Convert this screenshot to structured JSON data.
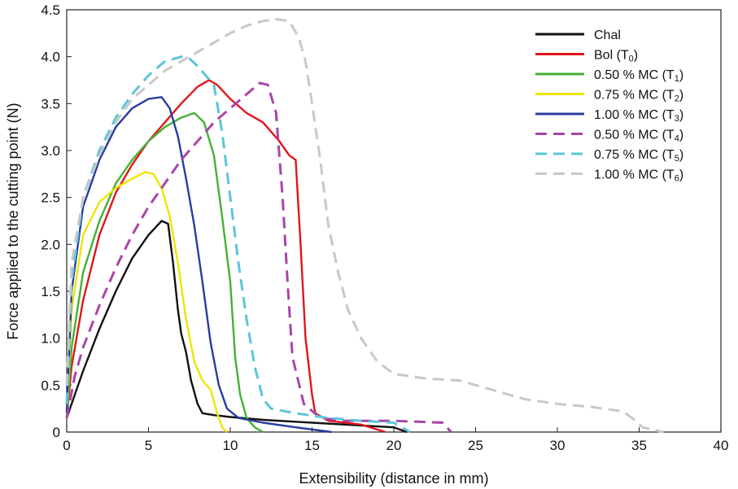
{
  "chart_data": {
    "type": "line",
    "xlabel": "Extensibility (distance in mm)",
    "ylabel": "Force applied to the cutting point (N)",
    "xlim": [
      0,
      40
    ],
    "ylim": [
      0,
      4.5
    ],
    "xticks": [
      0,
      5,
      10,
      15,
      20,
      25,
      30,
      35,
      40
    ],
    "yticks": [
      0,
      0.5,
      1.0,
      1.5,
      2.0,
      2.5,
      3.0,
      3.5,
      4.0,
      4.5
    ],
    "ytick_labels": [
      "0",
      "0.5",
      "1.0",
      "1.5",
      "2.0",
      "2.5",
      "3.0",
      "3.5",
      "4.0",
      "4.5"
    ],
    "grid": false,
    "legend_position": "top-right",
    "series": [
      {
        "name": "Chal",
        "sub": "",
        "color": "#111111",
        "dashed": false,
        "x": [
          0,
          0.3,
          1,
          2,
          3,
          4,
          5,
          5.8,
          6.2,
          6.5,
          6.8,
          7,
          7.3,
          7.6,
          8,
          8.3,
          9,
          10,
          12,
          15,
          18,
          20,
          20.8
        ],
        "y": [
          0.15,
          0.3,
          0.65,
          1.1,
          1.5,
          1.85,
          2.1,
          2.25,
          2.22,
          1.8,
          1.3,
          1.05,
          0.85,
          0.55,
          0.3,
          0.2,
          0.18,
          0.16,
          0.13,
          0.1,
          0.07,
          0.05,
          0.0
        ]
      },
      {
        "name": "Bol (T",
        "sub": "0",
        "color": "#e0161c",
        "dashed": false,
        "x": [
          0,
          0.3,
          1,
          2,
          3,
          4,
          5,
          6,
          7,
          8,
          8.7,
          9.2,
          10,
          11,
          12,
          13,
          13.6,
          14,
          14.3,
          14.6,
          15,
          15.2,
          16,
          18,
          19.5
        ],
        "y": [
          0.15,
          0.7,
          1.4,
          2.1,
          2.55,
          2.85,
          3.1,
          3.3,
          3.5,
          3.68,
          3.75,
          3.7,
          3.55,
          3.4,
          3.3,
          3.1,
          2.95,
          2.9,
          2.0,
          1.0,
          0.4,
          0.2,
          0.12,
          0.08,
          0.0
        ]
      },
      {
        "name": "0.50 % MC (T",
        "sub": "1",
        "color": "#45b035",
        "dashed": false,
        "x": [
          0,
          0.3,
          1,
          2,
          3,
          4,
          5,
          6,
          7,
          7.8,
          8.4,
          9,
          9.5,
          10,
          10.3,
          10.6,
          11,
          11.5,
          12
        ],
        "y": [
          0.15,
          0.9,
          1.7,
          2.25,
          2.65,
          2.9,
          3.1,
          3.25,
          3.35,
          3.4,
          3.3,
          2.95,
          2.3,
          1.6,
          0.8,
          0.4,
          0.15,
          0.05,
          0.0
        ]
      },
      {
        "name": "0.75 % MC (T",
        "sub": "2",
        "color": "#f0e400",
        "dashed": false,
        "x": [
          0,
          0.3,
          1,
          2,
          3,
          4,
          4.8,
          5.3,
          5.8,
          6.3,
          6.8,
          7.3,
          7.8,
          8.3,
          8.8,
          9.2,
          9.5,
          9.8
        ],
        "y": [
          0.15,
          1.3,
          2.1,
          2.45,
          2.6,
          2.7,
          2.77,
          2.75,
          2.6,
          2.3,
          1.8,
          1.2,
          0.75,
          0.55,
          0.45,
          0.2,
          0.05,
          0.0
        ]
      },
      {
        "name": "1.00 % MC (T",
        "sub": "3",
        "color": "#2b3c9f",
        "dashed": false,
        "x": [
          0,
          0.3,
          1,
          2,
          3,
          4,
          5,
          5.8,
          6.3,
          6.8,
          7.3,
          7.8,
          8.3,
          8.8,
          9.3,
          9.8,
          10.5,
          12,
          14,
          16.2
        ],
        "y": [
          0.2,
          1.5,
          2.4,
          2.9,
          3.25,
          3.45,
          3.55,
          3.57,
          3.45,
          3.15,
          2.7,
          2.2,
          1.6,
          0.95,
          0.5,
          0.25,
          0.15,
          0.1,
          0.05,
          0.0
        ]
      },
      {
        "name": "0.50 % MC (T",
        "sub": "4",
        "color": "#a845a8",
        "dashed": true,
        "x": [
          0,
          0.5,
          1,
          2,
          3,
          4,
          5,
          6,
          7,
          8,
          9,
          10,
          11,
          11.8,
          12.3,
          12.8,
          13.2,
          13.5,
          13.8,
          14.5,
          15.5,
          17,
          20,
          23,
          23.5
        ],
        "y": [
          0.15,
          0.6,
          0.9,
          1.35,
          1.75,
          2.1,
          2.4,
          2.65,
          2.9,
          3.1,
          3.3,
          3.45,
          3.6,
          3.72,
          3.7,
          3.4,
          2.5,
          1.6,
          0.8,
          0.3,
          0.15,
          0.12,
          0.12,
          0.1,
          0.0
        ]
      },
      {
        "name": "0.75 % MC (T",
        "sub": "5",
        "color": "#5bc6d8",
        "dashed": true,
        "x": [
          0,
          0.3,
          1,
          2,
          3,
          4,
          5,
          6,
          7,
          7.5,
          8,
          8.5,
          9,
          9.5,
          10,
          10.5,
          11,
          11.5,
          12,
          12.5,
          14,
          16,
          18,
          20,
          21
        ],
        "y": [
          0.3,
          1.6,
          2.5,
          3.0,
          3.35,
          3.6,
          3.8,
          3.95,
          4.0,
          3.98,
          3.9,
          3.8,
          3.7,
          3.2,
          2.5,
          1.8,
          1.2,
          0.7,
          0.35,
          0.25,
          0.2,
          0.15,
          0.12,
          0.1,
          0.0
        ]
      },
      {
        "name": "1.00 % MC (T",
        "sub": "6",
        "color": "#c8c8c8",
        "dashed": true,
        "x": [
          0,
          0.3,
          1,
          2,
          3,
          4,
          5,
          6,
          7,
          8,
          9,
          10,
          11,
          12,
          12.8,
          13.6,
          14.2,
          14.6,
          15,
          15.5,
          16,
          16.6,
          17.2,
          18,
          19,
          20,
          22,
          24,
          26,
          28,
          30,
          32,
          34,
          34.8,
          35.2,
          36.5
        ],
        "y": [
          0.5,
          1.8,
          2.5,
          2.95,
          3.3,
          3.55,
          3.7,
          3.85,
          3.95,
          4.05,
          4.15,
          4.25,
          4.33,
          4.38,
          4.4,
          4.38,
          4.2,
          3.95,
          3.5,
          2.9,
          2.2,
          1.7,
          1.3,
          1.0,
          0.75,
          0.62,
          0.57,
          0.55,
          0.45,
          0.35,
          0.3,
          0.27,
          0.22,
          0.12,
          0.05,
          0.0
        ]
      }
    ]
  }
}
